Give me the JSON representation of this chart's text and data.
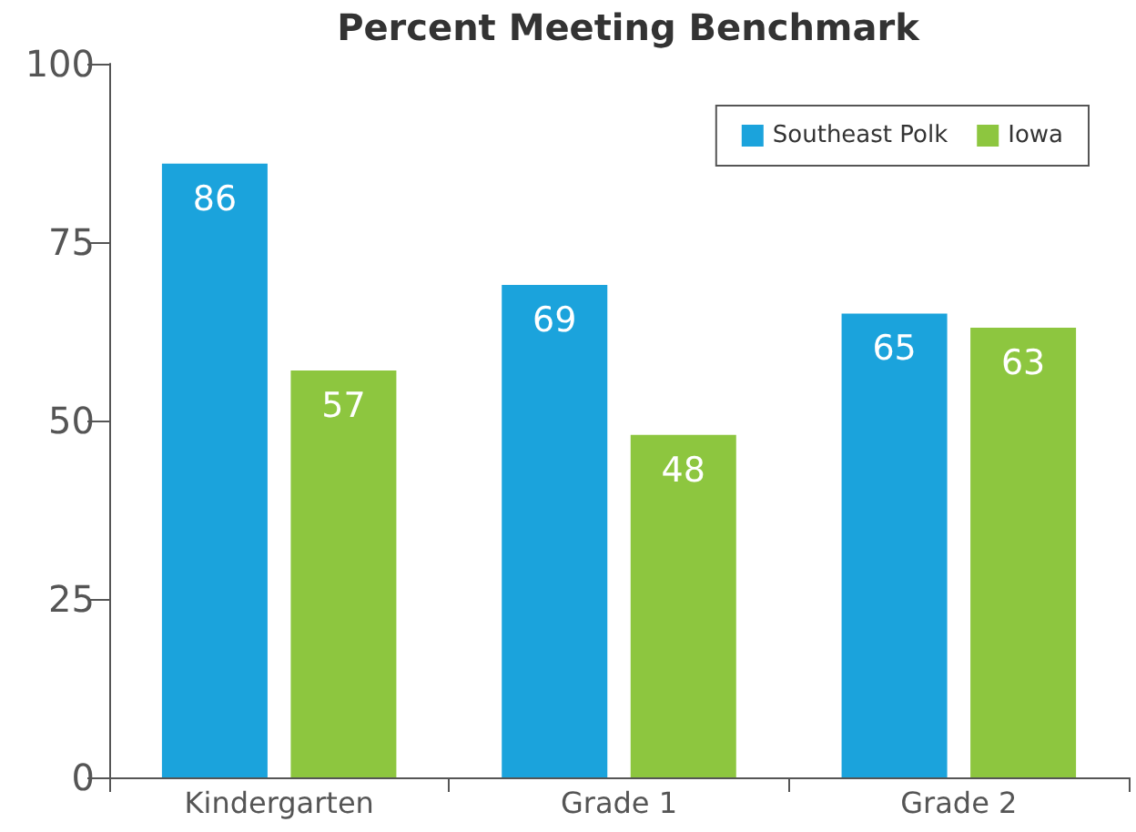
{
  "chart_data": {
    "type": "bar",
    "title": "Percent Meeting Benchmark",
    "categories": [
      "Kindergarten",
      "Grade 1",
      "Grade 2"
    ],
    "series": [
      {
        "name": "Southeast Polk",
        "color": "#1ba3dc",
        "values": [
          86,
          69,
          65
        ]
      },
      {
        "name": "Iowa",
        "color": "#8dc63f",
        "values": [
          57,
          48,
          63
        ]
      }
    ],
    "ylim": [
      0,
      100
    ],
    "yticks": [
      0,
      25,
      50,
      75,
      100
    ],
    "data_labels": true,
    "legend": "top right",
    "grid": false
  }
}
